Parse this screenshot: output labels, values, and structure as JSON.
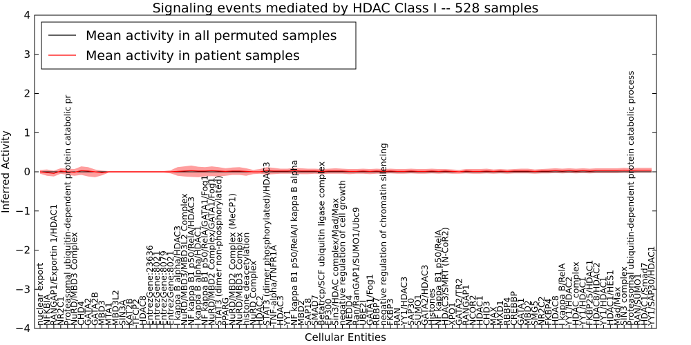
{
  "chart_data": {
    "type": "line",
    "title": "Signaling events mediated by HDAC Class I -- 528 samples",
    "xlabel": "Cellular Entities",
    "ylabel": "Inferred Activity",
    "ylim": [
      -4,
      4
    ],
    "yticks": [
      -4,
      -3,
      -2,
      -1,
      0,
      1,
      2,
      3,
      4
    ],
    "grid": false,
    "legend_position": "top-left",
    "legend": [
      {
        "label": "Mean activity in all permuted samples",
        "color": "#000000"
      },
      {
        "label": "Mean activity in patient samples",
        "color": "#ff0000"
      }
    ],
    "categories": [
      "nuclear export",
      "NFKBIA",
      "RANGAP1/Exportin 1/HDAC1",
      "NR2C1",
      "Proteasomal ubiquitin-dependent protein catabolic pr",
      "NuRD/MBD3 Complex",
      "CHD4",
      "GATA2",
      "GATA2B",
      "MBD3",
      "MTA1",
      "MBD3L2",
      "SIN3A",
      "KAT2B",
      "TFCP2",
      "HDAC8",
      "EntrezGene:23636",
      "EntrezGene:8021",
      "EntrezGene:8079",
      "EntrezGene:8021",
      "I kappa B alpha/HDAC3",
      "NuRD/MBD3/MBD3L2 Complex",
      "NF kappa B1 p50/RelA/HDAC3",
      "I kappa B alpha/HDAC1",
      "NF kappa B1 p50/RelA/GATA1/Fog1",
      "NuRD/MBD2 Complex/GATA1/Fog1",
      "STAT3 (dimer non-phosphorylated)",
      "PPARG",
      "NuRD/MBD2 Complex (MeCP1)",
      "NuRD/MBD3 Complex",
      "histone deacetylation",
      "NuRD Complex",
      "HDAC2",
      "STAT3 (dimer phosphorylated)/HDAC3",
      "TNF-alpha/TNFR1A",
      "HDAC3",
      "YY1",
      "NF kappa B1 p50/RelA/I kappa B alpha",
      "MBD2",
      "SAP18",
      "SMAD7",
      "Betatrcp/SCF ubiquitin ligase complex",
      "EP300",
      "Sin3/HDAC complex/Mad/Max",
      "negative regulation of cell growth",
      "NEDD4",
      "Ran/RanGAP1/SUMO1/Ubc9",
      "UBE2I",
      "GATA1/Fog1",
      "RBBP7",
      "negative regulation of chromatin silencing",
      "FKBP3",
      "RAN",
      "YY1/HDAC3",
      "SAP30",
      "SUMO1",
      "GATA2/HDAC3",
      "Histones",
      "NF kappa B1 p50/RelA",
      "HDAC3/SMRT (N-CoR2)",
      "XPO1",
      "GATA2/TR2",
      "RANGAP1",
      "NCOR2",
      "HDAC1",
      "CHD3",
      "MAX",
      "MXD1",
      "RBBP4",
      "CREBBP",
      "GATA1",
      "MBD2",
      "SMG5",
      "NR2C2",
      "FKBP4",
      "HDAC8",
      "I kappa B/RelA",
      "YY1/HDAC2",
      "HDAC complex",
      "YY1/HDAC1",
      "FKBP25/HDAC1",
      "HDAC8/HDAC2",
      "YY1/HDAC1",
      "HDAC1/HES1",
      "Mad/Max",
      "SIN3 complex",
      "Proteasomal ubiquitin-dependent protein catabolic process",
      "RAN/SUMO1",
      "HDAC1/Smad7",
      "YY1/SAP30/HDAC1"
    ],
    "series": [
      {
        "name": "Mean activity in patient samples",
        "color": "#ff0000",
        "values": [
          0.0,
          -0.02,
          -0.04,
          0.02,
          0.0,
          -0.01,
          0.03,
          0.02,
          0.0,
          -0.02,
          0.0,
          0.0,
          0.0,
          0.0,
          0.0,
          0.0,
          0.0,
          0.0,
          0.0,
          0.0,
          0.01,
          0.02,
          0.03,
          0.02,
          0.02,
          0.03,
          0.02,
          0.01,
          0.02,
          0.02,
          0.01,
          0.0,
          0.0,
          0.03,
          0.02,
          0.02,
          0.02,
          0.03,
          0.02,
          0.02,
          0.02,
          0.01,
          0.02,
          0.02,
          0.02,
          0.01,
          0.01,
          0.02,
          0.01,
          0.02,
          0.01,
          0.02,
          0.01,
          0.01,
          0.02,
          0.01,
          0.01,
          0.02,
          0.01,
          0.02,
          0.01,
          0.0,
          0.02,
          0.01,
          0.01,
          0.02,
          0.01,
          0.02,
          0.01,
          0.02,
          0.02,
          0.02,
          0.01,
          0.02,
          0.02,
          0.03,
          0.02,
          0.03,
          0.02,
          0.03,
          0.02,
          0.03,
          0.03,
          0.03,
          0.03,
          0.04,
          0.03,
          0.04,
          0.04,
          0.04
        ],
        "upper": [
          0.05,
          0.06,
          0.03,
          0.09,
          0.08,
          0.07,
          0.14,
          0.12,
          0.06,
          0.03,
          0.02,
          0.02,
          0.02,
          0.02,
          0.02,
          0.02,
          0.02,
          0.02,
          0.02,
          0.04,
          0.12,
          0.14,
          0.16,
          0.13,
          0.12,
          0.14,
          0.12,
          0.09,
          0.11,
          0.12,
          0.09,
          0.05,
          0.07,
          0.12,
          0.1,
          0.08,
          0.08,
          0.1,
          0.09,
          0.08,
          0.08,
          0.07,
          0.08,
          0.09,
          0.08,
          0.07,
          0.07,
          0.08,
          0.07,
          0.08,
          0.07,
          0.08,
          0.07,
          0.07,
          0.08,
          0.07,
          0.07,
          0.08,
          0.07,
          0.07,
          0.06,
          0.05,
          0.07,
          0.07,
          0.07,
          0.08,
          0.06,
          0.07,
          0.06,
          0.07,
          0.08,
          0.08,
          0.06,
          0.07,
          0.08,
          0.09,
          0.08,
          0.09,
          0.08,
          0.09,
          0.08,
          0.09,
          0.09,
          0.09,
          0.09,
          0.1,
          0.09,
          0.1,
          0.1,
          0.1
        ],
        "lower": [
          -0.05,
          -0.1,
          -0.12,
          -0.05,
          -0.08,
          -0.1,
          -0.08,
          -0.12,
          -0.14,
          -0.09,
          -0.02,
          -0.02,
          -0.02,
          -0.02,
          -0.02,
          -0.02,
          -0.02,
          -0.02,
          -0.02,
          -0.04,
          -0.1,
          -0.12,
          -0.13,
          -0.14,
          -0.12,
          -0.11,
          -0.12,
          -0.1,
          -0.08,
          -0.08,
          -0.1,
          -0.06,
          -0.05,
          -0.07,
          -0.06,
          -0.05,
          -0.05,
          -0.05,
          -0.06,
          -0.06,
          -0.05,
          -0.06,
          -0.05,
          -0.05,
          -0.05,
          -0.06,
          -0.05,
          -0.05,
          -0.06,
          -0.05,
          -0.05,
          -0.04,
          -0.05,
          -0.05,
          -0.04,
          -0.05,
          -0.05,
          -0.04,
          -0.05,
          -0.04,
          -0.05,
          -0.05,
          -0.04,
          -0.05,
          -0.05,
          -0.04,
          -0.05,
          -0.04,
          -0.05,
          -0.04,
          -0.04,
          -0.04,
          -0.05,
          -0.04,
          -0.04,
          -0.03,
          -0.04,
          -0.03,
          -0.04,
          -0.03,
          -0.04,
          -0.03,
          -0.03,
          -0.03,
          -0.03,
          -0.02,
          -0.03,
          -0.02,
          -0.02,
          -0.02
        ]
      },
      {
        "name": "Mean activity in all permuted samples",
        "color": "#000000",
        "values": [
          0.0,
          0.0,
          0.0,
          0.0,
          0.0,
          0.0,
          0.0,
          0.0,
          0.0,
          0.0,
          0.0,
          0.0,
          0.0,
          0.0,
          0.0,
          0.0,
          0.0,
          0.0,
          0.0,
          0.0,
          0.0,
          0.0,
          0.0,
          0.0,
          0.0,
          0.0,
          0.0,
          0.0,
          0.0,
          0.0,
          0.0,
          0.0,
          0.0,
          0.0,
          0.0,
          0.0,
          0.0,
          0.0,
          0.0,
          0.0,
          0.0,
          0.0,
          0.0,
          0.0,
          0.0,
          0.0,
          0.0,
          0.0,
          0.0,
          0.0,
          0.0,
          0.0,
          0.0,
          0.0,
          0.0,
          0.0,
          0.0,
          0.0,
          0.0,
          0.0,
          0.0,
          0.0,
          0.0,
          0.0,
          0.0,
          0.0,
          0.0,
          0.0,
          0.0,
          0.0,
          0.0,
          0.0,
          0.0,
          0.0,
          0.0,
          0.0,
          0.0,
          0.0,
          0.0,
          0.0,
          0.0,
          0.0,
          0.0,
          0.0,
          0.0,
          0.0,
          0.0,
          0.0,
          0.0,
          0.0
        ]
      }
    ]
  }
}
